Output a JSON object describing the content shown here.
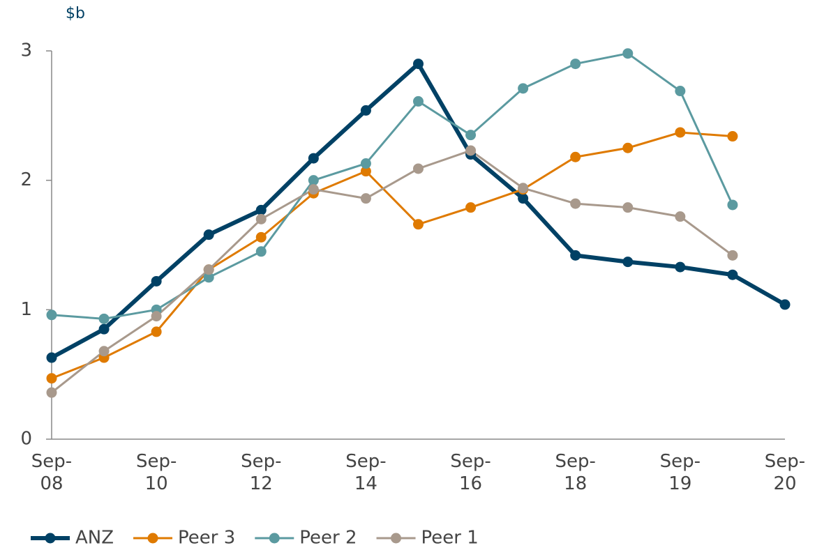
{
  "chart_data": {
    "type": "line",
    "y_label": "$b",
    "categories": [
      "Sep-08",
      null,
      "Sep-10",
      null,
      "Sep-12",
      null,
      "Sep-14",
      null,
      "Sep-16",
      null,
      "Sep-18",
      null,
      "Sep-19",
      null,
      "Sep-20"
    ],
    "series": [
      {
        "name": "ANZ",
        "color": "#004165",
        "line_width": 6,
        "values": [
          0.63,
          0.85,
          1.22,
          1.58,
          1.77,
          2.17,
          2.54,
          2.9,
          2.2,
          1.86,
          1.42,
          1.37,
          1.33,
          1.27,
          1.04
        ]
      },
      {
        "name": "Peer 3",
        "color": "#df7a00",
        "line_width": 3,
        "values": [
          0.47,
          0.63,
          0.83,
          1.31,
          1.56,
          1.9,
          2.07,
          1.66,
          1.79,
          1.93,
          2.18,
          2.25,
          2.37,
          2.34,
          null
        ]
      },
      {
        "name": "Peer 2",
        "color": "#5b9aa0",
        "line_width": 3,
        "values": [
          0.96,
          0.93,
          1.0,
          1.25,
          1.45,
          2.0,
          2.13,
          2.61,
          2.35,
          2.71,
          2.9,
          2.98,
          2.69,
          1.81,
          null
        ]
      },
      {
        "name": "Peer 1",
        "color": "#a8998c",
        "line_width": 3,
        "values": [
          0.36,
          0.68,
          0.95,
          1.31,
          1.7,
          1.93,
          1.86,
          2.09,
          2.23,
          1.94,
          1.82,
          1.79,
          1.72,
          1.42,
          null
        ]
      }
    ],
    "ylim": [
      0,
      3
    ],
    "yticks": [
      0,
      1,
      2,
      3
    ],
    "grid": false,
    "legend": "bottom-left"
  }
}
